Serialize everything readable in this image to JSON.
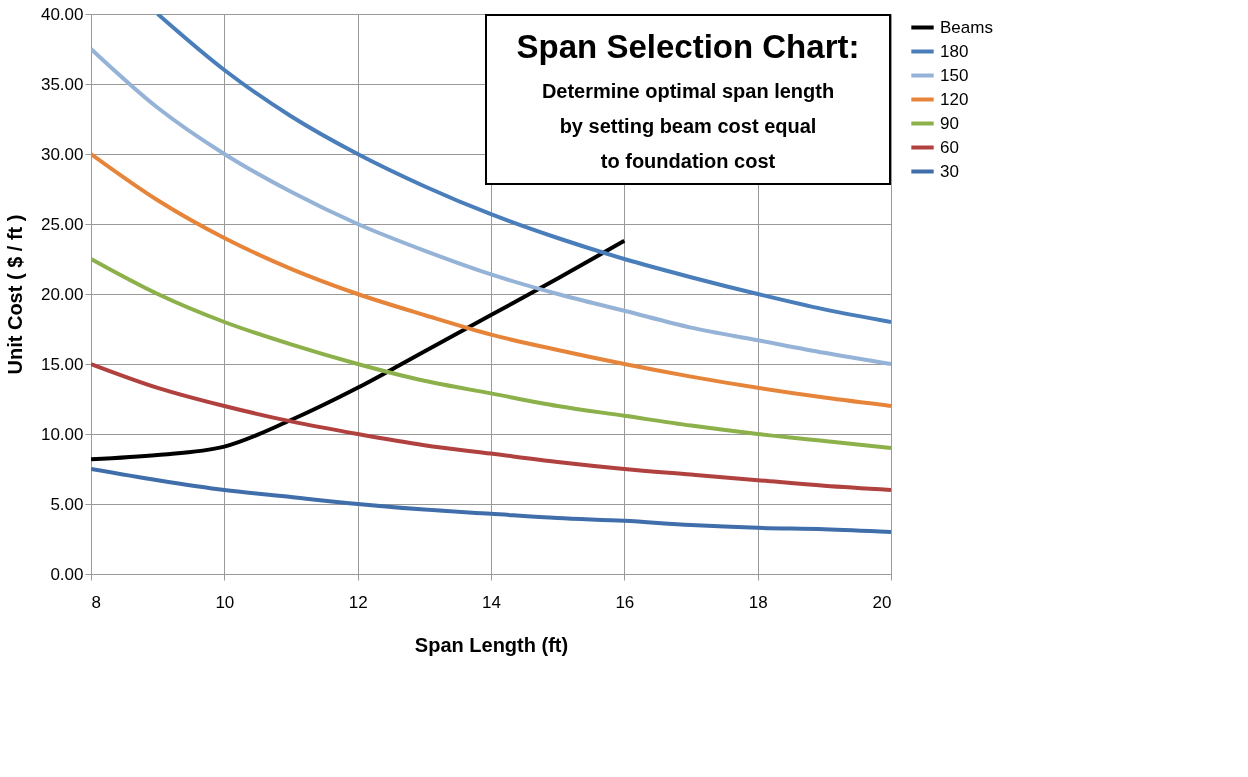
{
  "chart_data": {
    "type": "line",
    "title": "Span Selection Chart:",
    "subtitle": "Determine optimal span length\nby setting beam cost equal\nto foundation cost",
    "xlabel": "Span Length (ft)",
    "ylabel": "Unit  Cost  ( $ / ft )",
    "x": [
      8,
      9,
      10,
      11,
      12,
      13,
      14,
      15,
      16,
      17,
      18,
      19,
      20
    ],
    "series": [
      {
        "name": "Beams",
        "color": "#000000",
        "x": [
          8,
          9,
          10,
          11,
          12,
          13,
          14,
          15,
          16
        ],
        "values": [
          8.2,
          8.5,
          9.1,
          11.0,
          13.3,
          15.9,
          18.5,
          21.1,
          23.8
        ]
      },
      {
        "name": "180",
        "color": "#4a7ebb",
        "x": [
          9,
          10,
          11,
          12,
          13,
          14,
          15,
          16,
          17,
          18,
          19,
          20
        ],
        "values": [
          40.0,
          36.0,
          32.7,
          30.0,
          27.7,
          25.7,
          24.0,
          22.5,
          21.2,
          20.0,
          18.9,
          18.0
        ]
      },
      {
        "name": "150",
        "color": "#95b3d7",
        "values": [
          37.5,
          33.3,
          30.0,
          27.3,
          25.0,
          23.1,
          21.4,
          20.0,
          18.8,
          17.6,
          16.7,
          15.8,
          15.0
        ]
      },
      {
        "name": "120",
        "color": "#e6843a",
        "values": [
          30.0,
          26.7,
          24.0,
          21.8,
          20.0,
          18.5,
          17.1,
          16.0,
          15.0,
          14.1,
          13.3,
          12.6,
          12.0
        ]
      },
      {
        "name": "90",
        "color": "#8cb04a",
        "values": [
          22.5,
          20.0,
          18.0,
          16.4,
          15.0,
          13.8,
          12.9,
          12.0,
          11.3,
          10.6,
          10.0,
          9.5,
          9.0
        ]
      },
      {
        "name": "60",
        "color": "#b0413e",
        "values": [
          15.0,
          13.3,
          12.0,
          10.9,
          10.0,
          9.2,
          8.6,
          8.0,
          7.5,
          7.1,
          6.7,
          6.3,
          6.0
        ]
      },
      {
        "name": "30",
        "color": "#3f6eab",
        "values": [
          7.5,
          6.7,
          6.0,
          5.5,
          5.0,
          4.6,
          4.3,
          4.0,
          3.8,
          3.5,
          3.3,
          3.2,
          3.0
        ]
      }
    ],
    "xlim": [
      8,
      20
    ],
    "xticks": [
      8,
      10,
      12,
      14,
      16,
      18,
      20
    ],
    "ylim": [
      0,
      40
    ],
    "yticks": [
      {
        "value": 0,
        "label": "0.00"
      },
      {
        "value": 5,
        "label": "5.00"
      },
      {
        "value": 10,
        "label": "10.00"
      },
      {
        "value": 15,
        "label": "15.00"
      },
      {
        "value": 20,
        "label": "20.00"
      },
      {
        "value": 25,
        "label": "25.00"
      },
      {
        "value": 30,
        "label": "30.00"
      },
      {
        "value": 35,
        "label": "35.00"
      },
      {
        "value": 40,
        "label": "40.00"
      }
    ],
    "grid": true,
    "legend": "right",
    "marker": "none",
    "line_style": "solid"
  }
}
